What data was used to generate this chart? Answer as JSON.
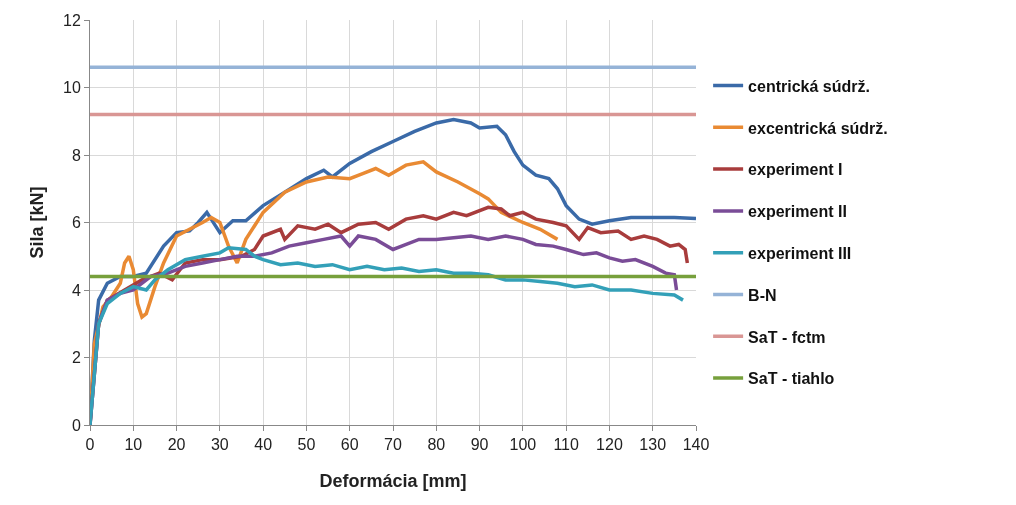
{
  "chart_data": {
    "type": "line",
    "xlabel": "Deformácia [mm]",
    "ylabel": "Sila [kN]",
    "xlim": [
      0,
      140
    ],
    "ylim": [
      0,
      12
    ],
    "xticks": [
      0,
      10,
      20,
      30,
      40,
      50,
      60,
      70,
      80,
      90,
      100,
      110,
      120,
      130,
      140
    ],
    "yticks": [
      0,
      2,
      4,
      6,
      8,
      10,
      12
    ],
    "grid": true,
    "legend": "right",
    "marker": "none",
    "line_style": "solid",
    "series": [
      {
        "name": "centrická súdrž.",
        "color": "#3a6aa8",
        "x": [
          0,
          1,
          2,
          4,
          7,
          10,
          13,
          17,
          20,
          23,
          25,
          27,
          29,
          30,
          33,
          36,
          40,
          45,
          50,
          54,
          56,
          60,
          65,
          70,
          75,
          80,
          84,
          88,
          90,
          94,
          96,
          98,
          100,
          103,
          106,
          108,
          110,
          113,
          116,
          120,
          125,
          130,
          135,
          140
        ],
        "values": [
          0,
          2.5,
          3.7,
          4.2,
          4.4,
          4.4,
          4.5,
          5.3,
          5.7,
          5.75,
          6.0,
          6.3,
          5.9,
          5.7,
          6.05,
          6.05,
          6.5,
          6.9,
          7.3,
          7.55,
          7.35,
          7.75,
          8.1,
          8.4,
          8.7,
          8.95,
          9.05,
          8.95,
          8.8,
          8.85,
          8.6,
          8.1,
          7.7,
          7.4,
          7.3,
          7.0,
          6.5,
          6.1,
          5.95,
          6.05,
          6.15,
          6.15,
          6.15,
          6.12
        ]
      },
      {
        "name": "excentrická súdrž.",
        "color": "#e98a33",
        "x": [
          0,
          1,
          3,
          5,
          7,
          8,
          9,
          10,
          11,
          12,
          13,
          15,
          17,
          20,
          23,
          26,
          28,
          30,
          32,
          34,
          36,
          40,
          45,
          50,
          55,
          60,
          63,
          66,
          69,
          73,
          77,
          80,
          85,
          90,
          92,
          95,
          100,
          104,
          108
        ],
        "values": [
          0,
          2.4,
          3.5,
          3.8,
          4.2,
          4.8,
          5.0,
          4.6,
          3.6,
          3.2,
          3.3,
          4.1,
          4.8,
          5.6,
          5.8,
          6.0,
          6.15,
          6.0,
          5.3,
          4.8,
          5.5,
          6.3,
          6.9,
          7.2,
          7.35,
          7.3,
          7.45,
          7.6,
          7.4,
          7.7,
          7.8,
          7.5,
          7.2,
          6.85,
          6.7,
          6.3,
          6.0,
          5.8,
          5.5
        ]
      },
      {
        "name": "experiment I",
        "color": "#a83c3c",
        "x": [
          0,
          2,
          4,
          8,
          12,
          16,
          19,
          22,
          26,
          30,
          35,
          38,
          40,
          44,
          45,
          48,
          52,
          55,
          58,
          62,
          66,
          69,
          73,
          77,
          80,
          84,
          87,
          92,
          95,
          97,
          100,
          103,
          107,
          110,
          113,
          115,
          118,
          122,
          125,
          128,
          131,
          134,
          136,
          137.5,
          138
        ],
        "values": [
          0,
          3,
          3.7,
          4.0,
          4.3,
          4.5,
          4.3,
          4.8,
          4.9,
          4.9,
          5.0,
          5.2,
          5.6,
          5.8,
          5.5,
          5.9,
          5.8,
          5.95,
          5.7,
          5.95,
          6.0,
          5.8,
          6.1,
          6.2,
          6.1,
          6.3,
          6.2,
          6.45,
          6.4,
          6.2,
          6.3,
          6.1,
          6.0,
          5.9,
          5.5,
          5.85,
          5.7,
          5.75,
          5.5,
          5.6,
          5.5,
          5.3,
          5.35,
          5.2,
          4.8
        ]
      },
      {
        "name": "experiment II",
        "color": "#7a4c97",
        "x": [
          0,
          2,
          4,
          7,
          10,
          14,
          18,
          22,
          26,
          30,
          34,
          38,
          42,
          46,
          50,
          54,
          58,
          60,
          62,
          66,
          70,
          72,
          76,
          80,
          84,
          88,
          92,
          96,
          100,
          103,
          107,
          110,
          114,
          117,
          120,
          123,
          126,
          130,
          133,
          135,
          135.5
        ],
        "values": [
          0,
          3,
          3.7,
          3.9,
          4.0,
          4.4,
          4.5,
          4.7,
          4.8,
          4.9,
          5.0,
          5.0,
          5.1,
          5.3,
          5.4,
          5.5,
          5.6,
          5.3,
          5.6,
          5.5,
          5.2,
          5.3,
          5.5,
          5.5,
          5.55,
          5.6,
          5.5,
          5.6,
          5.5,
          5.35,
          5.3,
          5.2,
          5.05,
          5.1,
          4.95,
          4.85,
          4.9,
          4.7,
          4.5,
          4.45,
          4.0
        ]
      },
      {
        "name": "experiment III",
        "color": "#33a0b8",
        "x": [
          0,
          2,
          4,
          7,
          10,
          13,
          15,
          18,
          22,
          26,
          30,
          32,
          36,
          38,
          40,
          44,
          48,
          52,
          56,
          60,
          64,
          68,
          72,
          76,
          80,
          84,
          88,
          92,
          96,
          100,
          104,
          108,
          112,
          116,
          120,
          125,
          130,
          135,
          137
        ],
        "values": [
          0,
          3,
          3.6,
          3.9,
          4.1,
          4.0,
          4.3,
          4.6,
          4.9,
          5.0,
          5.1,
          5.25,
          5.2,
          5.0,
          4.9,
          4.75,
          4.8,
          4.7,
          4.75,
          4.6,
          4.7,
          4.6,
          4.65,
          4.55,
          4.6,
          4.5,
          4.5,
          4.45,
          4.3,
          4.3,
          4.25,
          4.2,
          4.1,
          4.15,
          4.0,
          4.0,
          3.9,
          3.85,
          3.7
        ]
      },
      {
        "name": "B-N",
        "color": "#95b3d7",
        "x": [
          0,
          140
        ],
        "values": [
          10.6,
          10.6
        ]
      },
      {
        "name": "SaT - fctm",
        "color": "#d99694",
        "x": [
          0,
          140
        ],
        "values": [
          9.2,
          9.2
        ]
      },
      {
        "name": "SaT - tiahlo",
        "color": "#77a03c",
        "x": [
          0,
          140
        ],
        "values": [
          4.4,
          4.4
        ]
      }
    ]
  }
}
